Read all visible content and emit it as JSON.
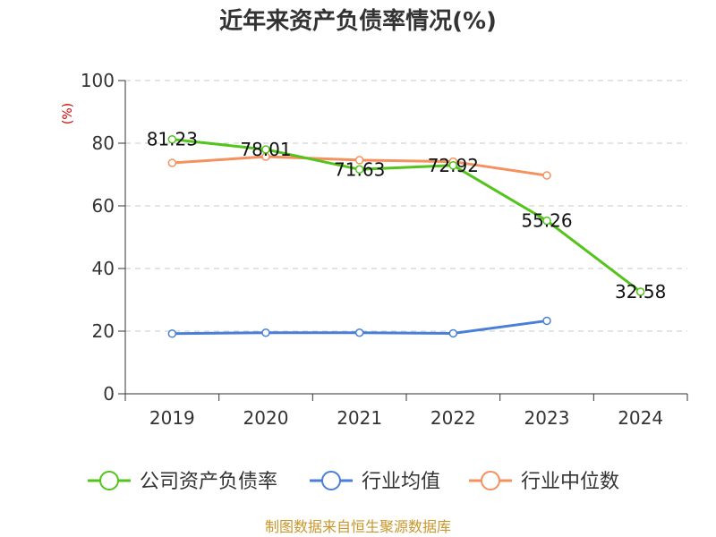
{
  "chart_data": {
    "type": "line",
    "title": "近年来资产负债率情况(%)",
    "ylabel": "(%)",
    "xlabel": "",
    "categories": [
      "2019",
      "2020",
      "2021",
      "2022",
      "2023",
      "2024"
    ],
    "ylim": [
      0,
      100
    ],
    "yticks": [
      0,
      20,
      40,
      60,
      80,
      100
    ],
    "grid": true,
    "legend_position": "bottom",
    "series": [
      {
        "name": "公司资产负债率",
        "color": "#52c41a",
        "values": [
          81.23,
          78.01,
          71.63,
          72.92,
          55.26,
          32.58
        ],
        "labels": [
          "81.23",
          "78.01",
          "71.63",
          "72.92",
          "55.26",
          "32.58"
        ]
      },
      {
        "name": "行业均值",
        "color": "#4a7fd8",
        "values": [
          19.2,
          19.5,
          19.5,
          19.3,
          23.3,
          null
        ]
      },
      {
        "name": "行业中位数",
        "color": "#f4915e",
        "values": [
          73.7,
          75.7,
          74.6,
          74.1,
          69.7,
          null
        ]
      }
    ],
    "source": "制图数据来自恒生聚源数据库"
  }
}
